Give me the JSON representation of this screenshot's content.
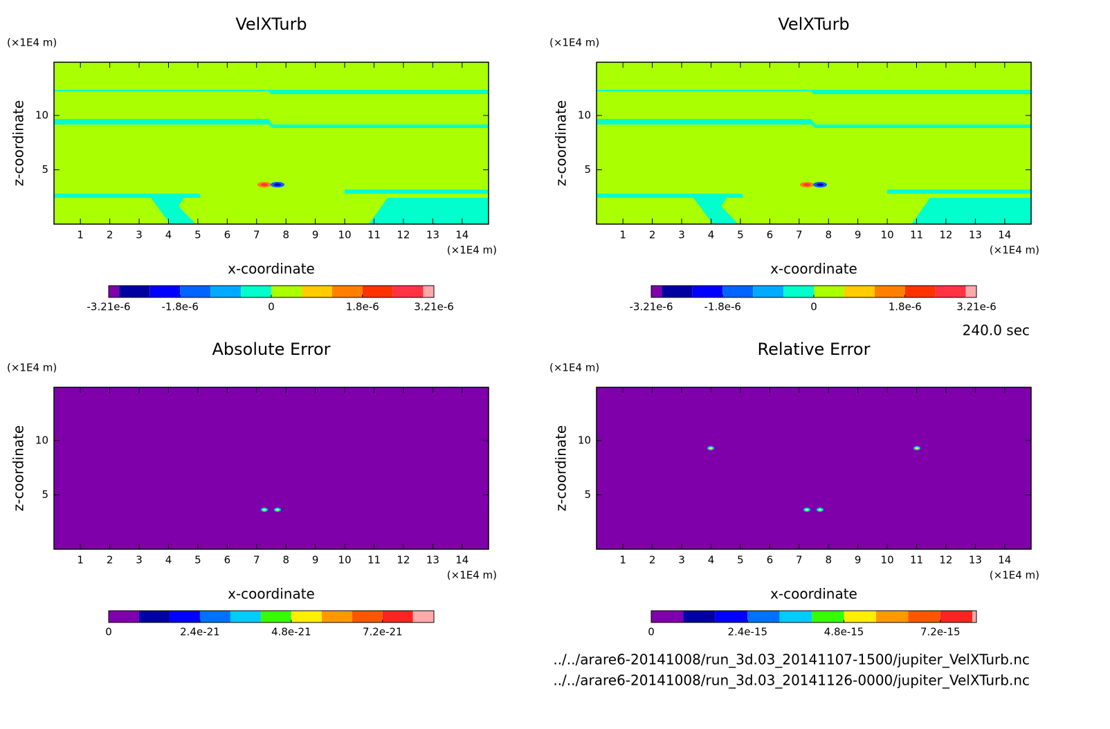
{
  "chart_data": [
    {
      "type": "contour",
      "title": "VelXTurb",
      "xlabel": "x-coordinate",
      "ylabel": "z-coordinate",
      "xunit": "(×1E4 m)",
      "yunit": "(×1E4 m)",
      "xlim": [
        0.1,
        14.9
      ],
      "ylim": [
        0,
        14.9
      ],
      "xticks": [
        1,
        2,
        3,
        4,
        5,
        6,
        7,
        8,
        9,
        10,
        11,
        12,
        13,
        14
      ],
      "yticks": [
        5,
        10
      ],
      "colorbar": {
        "levels": [
          -3.21e-06,
          -3e-06,
          -2.4e-06,
          -1.8e-06,
          -1.2e-06,
          -6e-07,
          0,
          6e-07,
          1.2e-06,
          1.8e-06,
          2.4e-06,
          3e-06,
          3.21e-06
        ],
        "colors": [
          "#7f00aa",
          "#0000a0",
          "#0000ff",
          "#0064ff",
          "#00aaff",
          "#00ffcc",
          "#aaff00",
          "#ffcc00",
          "#ff8000",
          "#ff3300",
          "#ff3344",
          "#ffaaaa"
        ],
        "ticks": [
          {
            "value": -3.21e-06,
            "label": "-3.21e-6"
          },
          {
            "value": -1.8e-06,
            "label": "-1.8e-6"
          },
          0,
          {
            "value": 1.8e-06,
            "label": "1.8e-6"
          },
          {
            "value": 3.21e-06,
            "label": "3.21e-6"
          }
        ]
      }
    },
    {
      "type": "contour",
      "title": "VelXTurb",
      "xlabel": "x-coordinate",
      "ylabel": "z-coordinate",
      "xunit": "(×1E4 m)",
      "yunit": "(×1E4 m)",
      "xlim": [
        0.1,
        14.9
      ],
      "ylim": [
        0,
        14.9
      ],
      "xticks": [
        1,
        2,
        3,
        4,
        5,
        6,
        7,
        8,
        9,
        10,
        11,
        12,
        13,
        14
      ],
      "yticks": [
        5,
        10
      ],
      "colorbar": {
        "levels": [
          -3.21e-06,
          -3e-06,
          -2.4e-06,
          -1.8e-06,
          -1.2e-06,
          -6e-07,
          0,
          6e-07,
          1.2e-06,
          1.8e-06,
          2.4e-06,
          3e-06,
          3.21e-06
        ],
        "colors": [
          "#7f00aa",
          "#0000a0",
          "#0000ff",
          "#0064ff",
          "#00aaff",
          "#00ffcc",
          "#aaff00",
          "#ffcc00",
          "#ff8000",
          "#ff3300",
          "#ff3344",
          "#ffaaaa"
        ],
        "ticks": [
          {
            "value": -3.21e-06,
            "label": "-3.21e-6"
          },
          {
            "value": -1.8e-06,
            "label": "-1.8e-6"
          },
          0,
          {
            "value": 1.8e-06,
            "label": "1.8e-6"
          },
          {
            "value": 3.21e-06,
            "label": "3.21e-6"
          }
        ]
      }
    },
    {
      "type": "contour",
      "title": "Absolute Error",
      "xlabel": "x-coordinate",
      "ylabel": "z-coordinate",
      "xunit": "(×1E4 m)",
      "yunit": "(×1E4 m)",
      "xlim": [
        0.1,
        14.9
      ],
      "ylim": [
        0,
        14.9
      ],
      "xticks": [
        1,
        2,
        3,
        4,
        5,
        6,
        7,
        8,
        9,
        10,
        11,
        12,
        13,
        14
      ],
      "yticks": [
        5,
        10
      ],
      "colorbar": {
        "levels": [
          0,
          8e-22,
          1.6e-21,
          2.4e-21,
          3.2e-21,
          4e-21,
          4.8e-21,
          5.6e-21,
          6.4e-21,
          7.2e-21,
          8e-21,
          8.55e-21
        ],
        "colors": [
          "#7f00aa",
          "#0000a0",
          "#0000ff",
          "#0070ff",
          "#00ccff",
          "#33ff00",
          "#ffee00",
          "#ff9900",
          "#ff5500",
          "#ff2222",
          "#ffaaaa"
        ],
        "ticks": [
          0,
          {
            "value": 2.4e-21,
            "label": "2.4e-21"
          },
          {
            "value": 4.8e-21,
            "label": "4.8e-21"
          },
          {
            "value": 7.2e-21,
            "label": "7.2e-21"
          }
        ]
      }
    },
    {
      "type": "contour",
      "title": "Relative Error",
      "xlabel": "x-coordinate",
      "ylabel": "z-coordinate",
      "xunit": "(×1E4 m)",
      "yunit": "(×1E4 m)",
      "xlim": [
        0.1,
        14.9
      ],
      "ylim": [
        0,
        14.9
      ],
      "xticks": [
        1,
        2,
        3,
        4,
        5,
        6,
        7,
        8,
        9,
        10,
        11,
        12,
        13,
        14
      ],
      "yticks": [
        5,
        10
      ],
      "colorbar": {
        "levels": [
          0,
          8e-16,
          1.6e-15,
          2.4e-15,
          3.2e-15,
          4e-15,
          4.8e-15,
          5.6e-15,
          6.4e-15,
          7.2e-15,
          8e-15,
          8.1e-15
        ],
        "colors": [
          "#7f00aa",
          "#0000a0",
          "#0000ff",
          "#0070ff",
          "#00ccff",
          "#33ff00",
          "#ffee00",
          "#ff9900",
          "#ff5500",
          "#ff2222",
          "#ffaaaa"
        ],
        "ticks": [
          0,
          {
            "value": 2.4e-15,
            "label": "2.4e-15"
          },
          {
            "value": 4.8e-15,
            "label": "4.8e-15"
          },
          {
            "value": 7.2e-15,
            "label": "7.2e-15"
          }
        ]
      }
    }
  ],
  "time_label": "240.0 sec",
  "files": [
    "../../arare6-20141008/run_3d.03_20141107-1500/jupiter_VelXTurb.nc",
    "../../arare6-20141008/run_3d.03_20141126-0000/jupiter_VelXTurb.nc"
  ]
}
